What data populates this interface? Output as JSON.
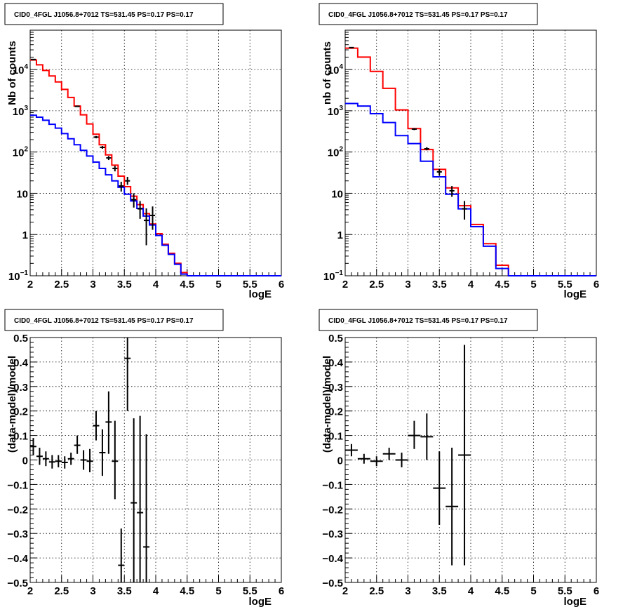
{
  "chart_data": [
    {
      "type": "line",
      "title": "CID0_4FGL J1056.8+7012 TS=531.45 PS=0.17 PS=0.17",
      "xlabel": "logE",
      "ylabel": "Nb of counts",
      "xlim": [
        2,
        6
      ],
      "ylim": [
        0.1,
        90000
      ],
      "yscale": "log",
      "grid": true,
      "xticks": [
        "2",
        "2.5",
        "3",
        "3.5",
        "4",
        "4.5",
        "5",
        "5.5",
        "6"
      ],
      "yticks": [
        {
          "v": 0.1,
          "label": "10",
          "sup": "−1"
        },
        {
          "v": 1,
          "label": "1",
          "sup": ""
        },
        {
          "v": 10,
          "label": "10",
          "sup": ""
        },
        {
          "v": 100,
          "label": "10",
          "sup": "2"
        },
        {
          "v": 1000,
          "label": "10",
          "sup": "3"
        },
        {
          "v": 10000,
          "label": "10",
          "sup": "4"
        }
      ],
      "bin_edges": [
        2.0,
        2.1,
        2.2,
        2.3,
        2.4,
        2.5,
        2.6,
        2.7,
        2.8,
        2.9,
        3.0,
        3.1,
        3.2,
        3.3,
        3.4,
        3.5,
        3.6,
        3.7,
        3.8,
        3.9,
        4.0,
        4.1,
        4.2,
        4.3,
        4.4,
        4.5,
        4.6,
        4.7,
        4.8,
        4.9,
        5.0,
        5.1,
        5.2,
        5.3,
        5.4,
        5.5,
        5.6,
        5.7,
        5.8,
        5.9,
        6.0
      ],
      "series": [
        {
          "color": "#ff0000",
          "values": [
            17000,
            13000,
            9500,
            7000,
            5000,
            3300,
            2100,
            1300,
            800,
            480,
            270,
            150,
            85,
            48,
            26,
            14.5,
            8.5,
            5.3,
            3.2,
            1.8,
            1.05,
            0.58,
            0.35,
            0.2,
            0.12,
            0.1,
            0.1,
            0.1,
            0.1,
            0.1,
            0.1,
            0.1,
            0.1,
            0.1,
            0.1,
            0.1,
            0.1,
            0.1,
            0.1,
            0.1
          ]
        },
        {
          "color": "#0000ff",
          "values": [
            780,
            700,
            590,
            470,
            380,
            280,
            210,
            150,
            110,
            80,
            57,
            40,
            28,
            20,
            14,
            9.5,
            6.5,
            4.3,
            2.8,
            1.7,
            0.95,
            0.55,
            0.33,
            0.19,
            0.11,
            0.1,
            0.1,
            0.1,
            0.1,
            0.1,
            0.1,
            0.1,
            0.1,
            0.1,
            0.1,
            0.1,
            0.1,
            0.1,
            0.1,
            0.1
          ]
        }
      ],
      "points": [
        {
          "x": 2.05,
          "y": 17500,
          "lo": 17000,
          "hi": 18000
        },
        {
          "x": 2.75,
          "y": 1280,
          "lo": 1240,
          "hi": 1320
        },
        {
          "x": 3.05,
          "y": 230,
          "lo": 215,
          "hi": 245
        },
        {
          "x": 3.15,
          "y": 130,
          "lo": 120,
          "hi": 140
        },
        {
          "x": 3.25,
          "y": 72,
          "lo": 64,
          "hi": 80
        },
        {
          "x": 3.35,
          "y": 40,
          "lo": 34,
          "hi": 46
        },
        {
          "x": 3.45,
          "y": 15,
          "lo": 11,
          "hi": 19
        },
        {
          "x": 3.55,
          "y": 20,
          "lo": 16,
          "hi": 25
        },
        {
          "x": 3.65,
          "y": 7,
          "lo": 4.5,
          "hi": 10
        },
        {
          "x": 3.75,
          "y": 4.2,
          "lo": 2.4,
          "hi": 6.5
        },
        {
          "x": 3.85,
          "y": 2.2,
          "lo": 0.55,
          "hi": 4.3
        },
        {
          "x": 3.95,
          "y": 2.9,
          "lo": 1.3,
          "hi": 4.8
        }
      ]
    },
    {
      "type": "line",
      "title": "CID0_4FGL J1056.8+7012 TS=531.45 PS=0.17 PS=0.17",
      "xlabel": "logE",
      "ylabel": "nb of counts",
      "xlim": [
        2,
        6
      ],
      "ylim": [
        0.1,
        90000
      ],
      "yscale": "log",
      "grid": true,
      "xticks": [
        "2",
        "2.5",
        "3",
        "3.5",
        "4",
        "4.5",
        "5",
        "5.5",
        "6"
      ],
      "yticks": [
        {
          "v": 0.1,
          "label": "10",
          "sup": "−1"
        },
        {
          "v": 1,
          "label": "1",
          "sup": ""
        },
        {
          "v": 10,
          "label": "10",
          "sup": ""
        },
        {
          "v": 100,
          "label": "10",
          "sup": "2"
        },
        {
          "v": 1000,
          "label": "10",
          "sup": "3"
        },
        {
          "v": 10000,
          "label": "10",
          "sup": "4"
        }
      ],
      "bin_edges": [
        2.0,
        2.2,
        2.4,
        2.6,
        2.8,
        3.0,
        3.2,
        3.4,
        3.6,
        3.8,
        4.0,
        4.2,
        4.4,
        4.6,
        4.8,
        5.0,
        5.2,
        5.4,
        5.6,
        5.8,
        6.0
      ],
      "series": [
        {
          "color": "#ff0000",
          "values": [
            33000,
            20000,
            9000,
            3500,
            1050,
            370,
            115,
            38,
            13.5,
            5,
            1.75,
            0.6,
            0.18,
            0.1,
            0.1,
            0.1,
            0.1,
            0.1,
            0.1,
            0.1
          ]
        },
        {
          "color": "#0000ff",
          "values": [
            1500,
            1300,
            850,
            520,
            250,
            160,
            60,
            25,
            9.5,
            4.2,
            1.55,
            0.52,
            0.15,
            0.1,
            0.1,
            0.1,
            0.1,
            0.1,
            0.1,
            0.1
          ]
        }
      ],
      "points": [
        {
          "x": 2.1,
          "y": 34000,
          "lo": 33000,
          "hi": 35000
        },
        {
          "x": 3.1,
          "y": 360,
          "lo": 340,
          "hi": 380
        },
        {
          "x": 3.3,
          "y": 120,
          "lo": 110,
          "hi": 131
        },
        {
          "x": 3.5,
          "y": 33,
          "lo": 27,
          "hi": 39
        },
        {
          "x": 3.7,
          "y": 11.5,
          "lo": 8.2,
          "hi": 15
        },
        {
          "x": 3.9,
          "y": 4.2,
          "lo": 2.3,
          "hi": 6.5
        }
      ]
    },
    {
      "type": "scatter",
      "title": "CID0_4FGL J1056.8+7012 TS=531.45 PS=0.17 PS=0.17",
      "xlabel": "logE",
      "ylabel": "(data-model)/model",
      "xlim": [
        2,
        6
      ],
      "ylim": [
        -0.5,
        0.5
      ],
      "grid": true,
      "xticks": [
        "2",
        "2.5",
        "3",
        "3.5",
        "4",
        "4.5",
        "5",
        "5.5",
        "6"
      ],
      "yticks": [
        {
          "v": 0.5,
          "label": "0.5"
        },
        {
          "v": 0.4,
          "label": "0.4"
        },
        {
          "v": 0.3,
          "label": "0.3"
        },
        {
          "v": 0.2,
          "label": "0.2"
        },
        {
          "v": 0.1,
          "label": "0.1"
        },
        {
          "v": 0,
          "label": "0"
        },
        {
          "v": -0.1,
          "label": "−0.1"
        },
        {
          "v": -0.2,
          "label": "−0.2"
        },
        {
          "v": -0.3,
          "label": "−0.3"
        },
        {
          "v": -0.4,
          "label": "−0.4"
        },
        {
          "v": -0.5,
          "label": "−0.5"
        }
      ],
      "points": [
        {
          "x": 2.05,
          "y": 0.055,
          "lo": 0.02,
          "hi": 0.09,
          "hw": 0.05
        },
        {
          "x": 2.15,
          "y": 0.015,
          "lo": -0.02,
          "hi": 0.05,
          "hw": 0.05
        },
        {
          "x": 2.25,
          "y": 0.005,
          "lo": -0.025,
          "hi": 0.035,
          "hw": 0.05
        },
        {
          "x": 2.35,
          "y": -0.008,
          "lo": -0.035,
          "hi": 0.02,
          "hw": 0.05
        },
        {
          "x": 2.45,
          "y": -0.005,
          "lo": -0.03,
          "hi": 0.02,
          "hw": 0.05
        },
        {
          "x": 2.55,
          "y": -0.01,
          "lo": -0.035,
          "hi": 0.015,
          "hw": 0.05
        },
        {
          "x": 2.65,
          "y": 0.005,
          "lo": -0.02,
          "hi": 0.03,
          "hw": 0.05
        },
        {
          "x": 2.75,
          "y": 0.06,
          "lo": 0.025,
          "hi": 0.1,
          "hw": 0.05
        },
        {
          "x": 2.85,
          "y": 0.0,
          "lo": -0.04,
          "hi": 0.04,
          "hw": 0.05
        },
        {
          "x": 2.95,
          "y": -0.005,
          "lo": -0.05,
          "hi": 0.045,
          "hw": 0.05
        },
        {
          "x": 3.05,
          "y": 0.14,
          "lo": 0.08,
          "hi": 0.2,
          "hw": 0.05
        },
        {
          "x": 3.15,
          "y": 0.03,
          "lo": -0.065,
          "hi": 0.125,
          "hw": 0.05
        },
        {
          "x": 3.25,
          "y": 0.155,
          "lo": 0.025,
          "hi": 0.28,
          "hw": 0.05
        },
        {
          "x": 3.35,
          "y": -0.005,
          "lo": -0.16,
          "hi": 0.16,
          "hw": 0.05
        },
        {
          "x": 3.45,
          "y": -0.43,
          "lo": -0.5,
          "hi": -0.28,
          "hw": 0.05
        },
        {
          "x": 3.55,
          "y": 0.415,
          "lo": 0.2,
          "hi": 0.5,
          "hw": 0.05
        },
        {
          "x": 3.65,
          "y": -0.175,
          "lo": -0.5,
          "hi": 0.17,
          "hw": 0.05
        },
        {
          "x": 3.75,
          "y": -0.215,
          "lo": -0.5,
          "hi": 0.18,
          "hw": 0.05
        },
        {
          "x": 3.85,
          "y": -0.355,
          "lo": -0.5,
          "hi": 0.105,
          "hw": 0.05
        }
      ]
    },
    {
      "type": "scatter",
      "title": "CID0_4FGL J1056.8+7012 TS=531.45 PS=0.17 PS=0.17",
      "xlabel": "logE",
      "ylabel": "(data-model)/model",
      "xlim": [
        2,
        6
      ],
      "ylim": [
        -0.5,
        0.5
      ],
      "grid": true,
      "xticks": [
        "2",
        "2.5",
        "3",
        "3.5",
        "4",
        "4.5",
        "5",
        "5.5",
        "6"
      ],
      "yticks": [
        {
          "v": 0.5,
          "label": "0.5"
        },
        {
          "v": 0.4,
          "label": "0.4"
        },
        {
          "v": 0.3,
          "label": "0.3"
        },
        {
          "v": 0.2,
          "label": "0.2"
        },
        {
          "v": 0.1,
          "label": "0.1"
        },
        {
          "v": 0,
          "label": "0"
        },
        {
          "v": -0.1,
          "label": "−0.1"
        },
        {
          "v": -0.2,
          "label": "−0.2"
        },
        {
          "v": -0.3,
          "label": "−0.3"
        },
        {
          "v": -0.4,
          "label": "−0.4"
        },
        {
          "v": -0.5,
          "label": "−0.5"
        }
      ],
      "points": [
        {
          "x": 2.1,
          "y": 0.04,
          "lo": 0.015,
          "hi": 0.065,
          "hw": 0.1
        },
        {
          "x": 2.3,
          "y": 0.005,
          "lo": -0.015,
          "hi": 0.025,
          "hw": 0.1
        },
        {
          "x": 2.5,
          "y": -0.005,
          "lo": -0.025,
          "hi": 0.015,
          "hw": 0.1
        },
        {
          "x": 2.7,
          "y": 0.025,
          "lo": 0.0,
          "hi": 0.05,
          "hw": 0.1
        },
        {
          "x": 2.9,
          "y": 0.0,
          "lo": -0.03,
          "hi": 0.03,
          "hw": 0.1
        },
        {
          "x": 3.1,
          "y": 0.1,
          "lo": 0.045,
          "hi": 0.16,
          "hw": 0.1
        },
        {
          "x": 3.3,
          "y": 0.095,
          "lo": 0.0,
          "hi": 0.19,
          "hw": 0.1
        },
        {
          "x": 3.5,
          "y": -0.115,
          "lo": -0.265,
          "hi": 0.035,
          "hw": 0.1
        },
        {
          "x": 3.7,
          "y": -0.19,
          "lo": -0.43,
          "hi": 0.05,
          "hw": 0.1
        },
        {
          "x": 3.9,
          "y": 0.02,
          "lo": -0.43,
          "hi": 0.47,
          "hw": 0.1
        }
      ]
    }
  ]
}
